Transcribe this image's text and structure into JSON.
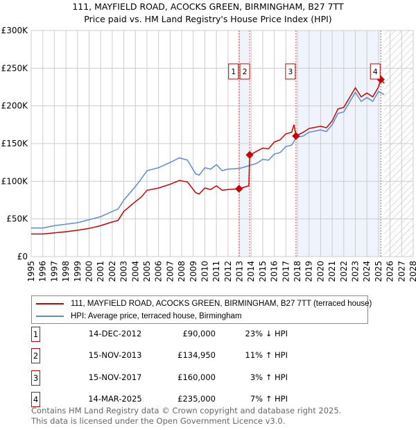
{
  "chart_data": {
    "type": "line",
    "title": "111, MAYFIELD ROAD, ACOCKS GREEN, BIRMINGHAM, B27 7TT",
    "subtitle": "Price paid vs. HM Land Registry's House Price Index (HPI)",
    "xlim": [
      1995,
      2028
    ],
    "ylim": [
      0,
      300000
    ],
    "x_ticks": [
      "1995",
      "1996",
      "1997",
      "1998",
      "1999",
      "2000",
      "2001",
      "2002",
      "2003",
      "2004",
      "2005",
      "2006",
      "2007",
      "2008",
      "2009",
      "2010",
      "2011",
      "2012",
      "2013",
      "2014",
      "2015",
      "2016",
      "2017",
      "2018",
      "2019",
      "2020",
      "2021",
      "2022",
      "2023",
      "2024",
      "2025",
      "2026",
      "2027",
      "2028"
    ],
    "y_ticks": [
      {
        "v": 0,
        "label": "£0"
      },
      {
        "v": 50000,
        "label": "£50K"
      },
      {
        "v": 100000,
        "label": "£100K"
      },
      {
        "v": 150000,
        "label": "£150K"
      },
      {
        "v": 200000,
        "label": "£200K"
      },
      {
        "v": 250000,
        "label": "£250K"
      },
      {
        "v": 300000,
        "label": "£300K"
      }
    ],
    "grid": true,
    "shaded_ranges": [
      [
        2012.95,
        2013.87
      ],
      [
        2017.87,
        2025.2
      ]
    ],
    "forecast_hatch_from": 2025.5,
    "series": [
      {
        "name": "111, MAYFIELD ROAD, ACOCKS GREEN, BIRMINGHAM, B27 7TT (terraced house)",
        "color": "#cc0000",
        "x": [
          1995,
          1996,
          1997,
          1998,
          1999,
          2000,
          2001,
          2002,
          2002.5,
          2003,
          2004,
          2004.5,
          2005,
          2006,
          2007,
          2007.8,
          2008.5,
          2009.2,
          2009.5,
          2010,
          2010.5,
          2011,
          2011.5,
          2012,
          2012.95,
          2013.8,
          2013.87,
          2014.5,
          2015,
          2015.5,
          2016,
          2016.5,
          2017,
          2017.5,
          2017.7,
          2017.87,
          2018.5,
          2019,
          2020,
          2020.5,
          2021,
          2021.5,
          2022,
          2022.5,
          2023,
          2023.5,
          2024,
          2024.5,
          2025,
          2025.2,
          2025.5
        ],
        "y": [
          30000,
          30000,
          31500,
          33000,
          35000,
          37500,
          41000,
          46000,
          48000,
          60000,
          73000,
          79000,
          88000,
          91000,
          96000,
          101000,
          99000,
          85000,
          83000,
          91000,
          89000,
          94000,
          88000,
          89000,
          90000,
          94000,
          134950,
          140000,
          144000,
          143000,
          152000,
          155000,
          163000,
          165000,
          175000,
          160000,
          165000,
          170000,
          173000,
          171000,
          180000,
          196000,
          198000,
          211000,
          224000,
          212000,
          217000,
          212000,
          225000,
          235000,
          230000
        ]
      },
      {
        "name": "HPI: Average price, terraced house, Birmingham",
        "color": "#5b8bd0",
        "x": [
          1995,
          1996,
          1997,
          1998,
          1999,
          2000,
          2001,
          2002,
          2002.5,
          2003,
          2004,
          2004.5,
          2005,
          2006,
          2007,
          2007.8,
          2008.5,
          2009.2,
          2009.5,
          2010,
          2010.5,
          2011,
          2011.5,
          2012,
          2013,
          2013.9,
          2014.5,
          2015,
          2015.5,
          2016,
          2016.5,
          2017,
          2017.5,
          2017.9,
          2018.5,
          2019,
          2020,
          2020.5,
          2021,
          2021.5,
          2022,
          2022.5,
          2023,
          2023.5,
          2024,
          2024.5,
          2025,
          2025.5
        ],
        "y": [
          38000,
          38000,
          41000,
          43000,
          45000,
          49000,
          53000,
          60000,
          63000,
          75000,
          93000,
          103000,
          114000,
          118000,
          125000,
          131000,
          128000,
          110000,
          108000,
          118000,
          116000,
          122000,
          114000,
          116000,
          117000,
          121000,
          124000,
          129000,
          128000,
          136000,
          138000,
          146000,
          148000,
          158000,
          160000,
          165000,
          168000,
          166000,
          175000,
          190000,
          192000,
          205000,
          218000,
          206000,
          211000,
          206000,
          219000,
          215000
        ]
      }
    ],
    "sales": [
      {
        "n": "1",
        "x": 2012.95,
        "y": 90000
      },
      {
        "n": "2",
        "x": 2013.87,
        "y": 134950
      },
      {
        "n": "3",
        "x": 2017.87,
        "y": 160000
      },
      {
        "n": "4",
        "x": 2025.2,
        "y": 235000
      }
    ]
  },
  "legend": {
    "property": "111, MAYFIELD ROAD, ACOCKS GREEN, BIRMINGHAM, B27 7TT (terraced house)",
    "hpi": "HPI: Average price, terraced house, Birmingham"
  },
  "transactions": [
    {
      "n": "1",
      "date": "14-DEC-2012",
      "price": "£90,000",
      "hpi": "23% ↓ HPI"
    },
    {
      "n": "2",
      "date": "15-NOV-2013",
      "price": "£134,950",
      "hpi": "11% ↑ HPI"
    },
    {
      "n": "3",
      "date": "15-NOV-2017",
      "price": "£160,000",
      "hpi": "3% ↑ HPI"
    },
    {
      "n": "4",
      "date": "14-MAR-2025",
      "price": "£235,000",
      "hpi": "7% ↑ HPI"
    }
  ],
  "footer": {
    "line1": "Contains HM Land Registry data © Crown copyright and database right 2025.",
    "line2": "This data is licensed under the Open Government Licence v3.0."
  }
}
